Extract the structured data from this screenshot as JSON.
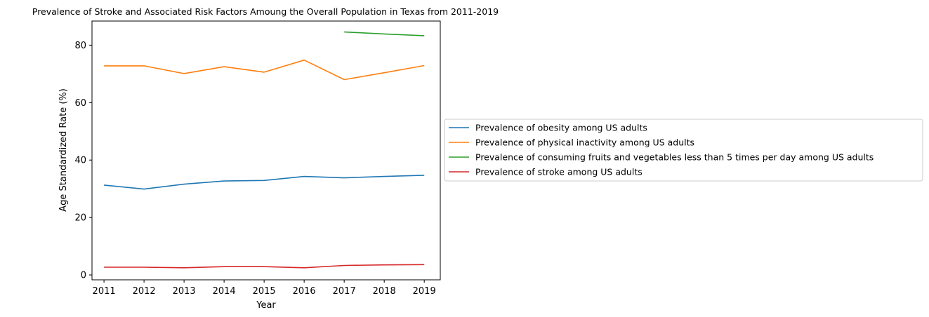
{
  "chart_data": {
    "type": "line",
    "title": "Prevalence of Stroke and Associated Risk Factors Amoung the Overall Population in Texas from 2011-2019",
    "xlabel": "Year",
    "ylabel": "Age Standardized Rate (%)",
    "x": [
      2011,
      2012,
      2013,
      2014,
      2015,
      2016,
      2017,
      2018,
      2019
    ],
    "xlim": [
      2010.7,
      2019.4
    ],
    "ylim": [
      -1.7,
      88.4
    ],
    "yticks": [
      0,
      20,
      40,
      60,
      80
    ],
    "grid": false,
    "legend_position": "center-right outside",
    "series": [
      {
        "name": "Prevalence of obesity among US adults",
        "color": "#1f77b4",
        "values": [
          31.3,
          29.9,
          31.6,
          32.7,
          32.9,
          34.3,
          33.8,
          34.3,
          34.7
        ]
      },
      {
        "name": "Prevalence of physical inactivity among US adults",
        "color": "#ff7f0e",
        "values": [
          72.8,
          72.8,
          70.1,
          72.5,
          70.6,
          74.8,
          68.0,
          70.4,
          72.9
        ]
      },
      {
        "name": "Prevalence of consuming fruits and vegetables less than 5 times per day among US adults",
        "color": "#2ca02c",
        "values": [
          null,
          null,
          null,
          null,
          null,
          null,
          84.6,
          83.9,
          83.3
        ]
      },
      {
        "name": "Prevalence of stroke among US adults",
        "color": "#d62728",
        "values": [
          2.7,
          2.7,
          2.5,
          2.9,
          2.9,
          2.5,
          3.3,
          3.5,
          3.6
        ]
      }
    ]
  }
}
